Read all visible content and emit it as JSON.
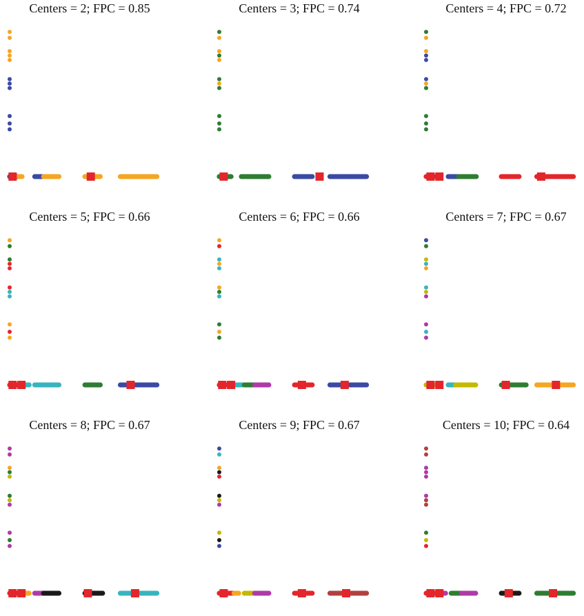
{
  "figure": {
    "panels": [
      {
        "title": "Centers = 2; FPC = 0.85"
      },
      {
        "title": "Centers = 3; FPC = 0.74"
      },
      {
        "title": "Centers = 4; FPC = 0.72"
      },
      {
        "title": "Centers = 5; FPC = 0.66"
      },
      {
        "title": "Centers = 6; FPC = 0.66"
      },
      {
        "title": "Centers = 7; FPC = 0.67"
      },
      {
        "title": "Centers = 8; FPC = 0.67"
      },
      {
        "title": "Centers = 9; FPC = 0.67"
      },
      {
        "title": "Centers = 10; FPC = 0.64"
      }
    ]
  },
  "chart_data": [
    {
      "type": "scatter",
      "title": "Centers = 2; FPC = 0.85",
      "xlim": [
        0,
        100
      ],
      "ylim": [
        0,
        100
      ],
      "vertical": [
        {
          "y": 98,
          "c": "#f5a623"
        },
        {
          "y": 94,
          "c": "#f5a623"
        },
        {
          "y": 85,
          "c": "#f5a623"
        },
        {
          "y": 82,
          "c": "#f5a623"
        },
        {
          "y": 79,
          "c": "#f5a623"
        },
        {
          "y": 66,
          "c": "#3b4aa3"
        },
        {
          "y": 63,
          "c": "#3b4aa3"
        },
        {
          "y": 60,
          "c": "#3b4aa3"
        },
        {
          "y": 41,
          "c": "#3b4aa3"
        },
        {
          "y": 36,
          "c": "#3b4aa3"
        },
        {
          "y": 32,
          "c": "#3b4aa3"
        }
      ],
      "horizontal": [
        {
          "x": [
            0,
            6
          ],
          "c": "#3b4aa3"
        },
        {
          "x": [
            6,
            9
          ],
          "c": "#f5a623"
        },
        {
          "x": [
            17,
            22
          ],
          "c": "#3b4aa3"
        },
        {
          "x": [
            23,
            34
          ],
          "c": "#f5a623"
        },
        {
          "x": [
            51,
            62
          ],
          "c": "#f5a623"
        },
        {
          "x": [
            75,
            100
          ],
          "c": "#f5a623"
        }
      ],
      "centers": [
        2,
        55
      ]
    },
    {
      "type": "scatter",
      "title": "Centers = 3; FPC = 0.74",
      "xlim": [
        0,
        100
      ],
      "ylim": [
        0,
        100
      ],
      "vertical": [
        {
          "y": 98,
          "c": "#2e7d32"
        },
        {
          "y": 94,
          "c": "#f5a623"
        },
        {
          "y": 85,
          "c": "#f5a623"
        },
        {
          "y": 82,
          "c": "#2e7d32"
        },
        {
          "y": 79,
          "c": "#f5a623"
        },
        {
          "y": 66,
          "c": "#2e7d32"
        },
        {
          "y": 63,
          "c": "#f5a623"
        },
        {
          "y": 60,
          "c": "#2e7d32"
        },
        {
          "y": 41,
          "c": "#2e7d32"
        },
        {
          "y": 36,
          "c": "#2e7d32"
        },
        {
          "y": 32,
          "c": "#2e7d32"
        }
      ],
      "horizontal": [
        {
          "x": [
            0,
            8
          ],
          "c": "#2e7d32"
        },
        {
          "x": [
            15,
            24
          ],
          "c": "#2e7d32"
        },
        {
          "x": [
            24,
            34
          ],
          "c": "#2e7d32"
        },
        {
          "x": [
            51,
            63
          ],
          "c": "#3b4aa3"
        },
        {
          "x": [
            75,
            100
          ],
          "c": "#3b4aa3"
        }
      ],
      "centers": [
        3,
        68
      ]
    },
    {
      "type": "scatter",
      "title": "Centers = 4; FPC = 0.72",
      "xlim": [
        0,
        100
      ],
      "ylim": [
        0,
        100
      ],
      "vertical": [
        {
          "y": 98,
          "c": "#2e7d32"
        },
        {
          "y": 94,
          "c": "#f5a623"
        },
        {
          "y": 85,
          "c": "#f5a623"
        },
        {
          "y": 82,
          "c": "#3b4aa3"
        },
        {
          "y": 79,
          "c": "#3b4aa3"
        },
        {
          "y": 66,
          "c": "#3b4aa3"
        },
        {
          "y": 63,
          "c": "#f5a623"
        },
        {
          "y": 60,
          "c": "#2e7d32"
        },
        {
          "y": 41,
          "c": "#2e7d32"
        },
        {
          "y": 36,
          "c": "#2e7d32"
        },
        {
          "y": 32,
          "c": "#2e7d32"
        }
      ],
      "horizontal": [
        {
          "x": [
            0,
            8
          ],
          "c": "#e3262b"
        },
        {
          "x": [
            15,
            22
          ],
          "c": "#3b4aa3"
        },
        {
          "x": [
            22,
            34
          ],
          "c": "#2e7d32"
        },
        {
          "x": [
            51,
            63
          ],
          "c": "#e3262b"
        },
        {
          "x": [
            75,
            100
          ],
          "c": "#e3262b"
        }
      ],
      "centers": [
        3,
        9,
        78
      ]
    },
    {
      "type": "scatter",
      "title": "Centers = 5; FPC = 0.66",
      "xlim": [
        0,
        100
      ],
      "ylim": [
        0,
        100
      ],
      "vertical": [
        {
          "y": 98,
          "c": "#f5a623"
        },
        {
          "y": 94,
          "c": "#2e7d32"
        },
        {
          "y": 85,
          "c": "#2e7d32"
        },
        {
          "y": 82,
          "c": "#e3262b"
        },
        {
          "y": 79,
          "c": "#e3262b"
        },
        {
          "y": 66,
          "c": "#e3262b"
        },
        {
          "y": 63,
          "c": "#37b5bf"
        },
        {
          "y": 60,
          "c": "#37b5bf"
        },
        {
          "y": 41,
          "c": "#f5a623"
        },
        {
          "y": 36,
          "c": "#e3262b"
        },
        {
          "y": 32,
          "c": "#f5a623"
        }
      ],
      "horizontal": [
        {
          "x": [
            0,
            10
          ],
          "c": "#e3262b"
        },
        {
          "x": [
            10,
            14
          ],
          "c": "#37b5bf"
        },
        {
          "x": [
            17,
            23
          ],
          "c": "#37b5bf"
        },
        {
          "x": [
            23,
            34
          ],
          "c": "#37b5bf"
        },
        {
          "x": [
            51,
            62
          ],
          "c": "#2e7d32"
        },
        {
          "x": [
            75,
            100
          ],
          "c": "#3b4aa3"
        }
      ],
      "centers": [
        2,
        8,
        82
      ]
    },
    {
      "type": "scatter",
      "title": "Centers = 6; FPC = 0.66",
      "xlim": [
        0,
        100
      ],
      "ylim": [
        0,
        100
      ],
      "vertical": [
        {
          "y": 98,
          "c": "#f5a623"
        },
        {
          "y": 94,
          "c": "#e3262b"
        },
        {
          "y": 85,
          "c": "#37b5bf"
        },
        {
          "y": 82,
          "c": "#f5a623"
        },
        {
          "y": 79,
          "c": "#37b5bf"
        },
        {
          "y": 66,
          "c": "#f5a623"
        },
        {
          "y": 63,
          "c": "#2e7d32"
        },
        {
          "y": 60,
          "c": "#37b5bf"
        },
        {
          "y": 41,
          "c": "#2e7d32"
        },
        {
          "y": 36,
          "c": "#f5a623"
        },
        {
          "y": 32,
          "c": "#2e7d32"
        }
      ],
      "horizontal": [
        {
          "x": [
            0,
            10
          ],
          "c": "#e3262b"
        },
        {
          "x": [
            10,
            16
          ],
          "c": "#37b5bf"
        },
        {
          "x": [
            17,
            24
          ],
          "c": "#2e7d32"
        },
        {
          "x": [
            24,
            34
          ],
          "c": "#b03aa8"
        },
        {
          "x": [
            51,
            63
          ],
          "c": "#e3262b"
        },
        {
          "x": [
            75,
            100
          ],
          "c": "#3b4aa3"
        }
      ],
      "centers": [
        2,
        8,
        56,
        85
      ]
    },
    {
      "type": "scatter",
      "title": "Centers = 7; FPC = 0.67",
      "xlim": [
        0,
        100
      ],
      "ylim": [
        0,
        100
      ],
      "vertical": [
        {
          "y": 98,
          "c": "#3b4aa3"
        },
        {
          "y": 94,
          "c": "#2e7d32"
        },
        {
          "y": 85,
          "c": "#c4b800"
        },
        {
          "y": 82,
          "c": "#37b5bf"
        },
        {
          "y": 79,
          "c": "#f5a623"
        },
        {
          "y": 66,
          "c": "#37b5bf"
        },
        {
          "y": 63,
          "c": "#c4b800"
        },
        {
          "y": 60,
          "c": "#b03aa8"
        },
        {
          "y": 41,
          "c": "#b03aa8"
        },
        {
          "y": 36,
          "c": "#37b5bf"
        },
        {
          "y": 32,
          "c": "#b03aa8"
        }
      ],
      "horizontal": [
        {
          "x": [
            0,
            10
          ],
          "c": "#c4b800"
        },
        {
          "x": [
            15,
            20
          ],
          "c": "#37b5bf"
        },
        {
          "x": [
            20,
            34
          ],
          "c": "#c4b800"
        },
        {
          "x": [
            51,
            68
          ],
          "c": "#2e7d32"
        },
        {
          "x": [
            75,
            100
          ],
          "c": "#f5a623"
        }
      ],
      "centers": [
        3,
        9,
        54,
        88
      ]
    },
    {
      "type": "scatter",
      "title": "Centers = 8; FPC = 0.67",
      "xlim": [
        0,
        100
      ],
      "ylim": [
        0,
        100
      ],
      "vertical": [
        {
          "y": 98,
          "c": "#b03aa8"
        },
        {
          "y": 94,
          "c": "#b03aa8"
        },
        {
          "y": 85,
          "c": "#f5a623"
        },
        {
          "y": 82,
          "c": "#2e7d32"
        },
        {
          "y": 79,
          "c": "#c4b800"
        },
        {
          "y": 66,
          "c": "#2e7d32"
        },
        {
          "y": 63,
          "c": "#c4b800"
        },
        {
          "y": 60,
          "c": "#b03aa8"
        },
        {
          "y": 41,
          "c": "#b03aa8"
        },
        {
          "y": 36,
          "c": "#2e7d32"
        },
        {
          "y": 32,
          "c": "#b03aa8"
        }
      ],
      "horizontal": [
        {
          "x": [
            0,
            10
          ],
          "c": "#e3262b"
        },
        {
          "x": [
            10,
            14
          ],
          "c": "#f5a623"
        },
        {
          "x": [
            17,
            23
          ],
          "c": "#b03aa8"
        },
        {
          "x": [
            23,
            34
          ],
          "c": "#1a1a1a"
        },
        {
          "x": [
            51,
            63
          ],
          "c": "#1a1a1a"
        },
        {
          "x": [
            75,
            100
          ],
          "c": "#37b5bf"
        }
      ],
      "centers": [
        2,
        8,
        53,
        85
      ]
    },
    {
      "type": "scatter",
      "title": "Centers = 9; FPC = 0.67",
      "xlim": [
        0,
        100
      ],
      "ylim": [
        0,
        100
      ],
      "vertical": [
        {
          "y": 98,
          "c": "#3b4aa3"
        },
        {
          "y": 94,
          "c": "#37b5bf"
        },
        {
          "y": 85,
          "c": "#f5a623"
        },
        {
          "y": 82,
          "c": "#1a1a1a"
        },
        {
          "y": 79,
          "c": "#e3262b"
        },
        {
          "y": 66,
          "c": "#1a1a1a"
        },
        {
          "y": 63,
          "c": "#c4b800"
        },
        {
          "y": 60,
          "c": "#b03aa8"
        },
        {
          "y": 41,
          "c": "#c4b800"
        },
        {
          "y": 36,
          "c": "#1a1a1a"
        },
        {
          "y": 32,
          "c": "#3b4aa3"
        }
      ],
      "horizontal": [
        {
          "x": [
            0,
            10
          ],
          "c": "#e3262b"
        },
        {
          "x": [
            10,
            14
          ],
          "c": "#f5a623"
        },
        {
          "x": [
            17,
            24
          ],
          "c": "#c4b800"
        },
        {
          "x": [
            24,
            34
          ],
          "c": "#b03aa8"
        },
        {
          "x": [
            51,
            63
          ],
          "c": "#e3262b"
        },
        {
          "x": [
            75,
            100
          ],
          "c": "#b2413f"
        }
      ],
      "centers": [
        3,
        56,
        86
      ]
    },
    {
      "type": "scatter",
      "title": "Centers = 10; FPC = 0.64",
      "xlim": [
        0,
        100
      ],
      "ylim": [
        0,
        100
      ],
      "vertical": [
        {
          "y": 98,
          "c": "#b2413f"
        },
        {
          "y": 94,
          "c": "#b2413f"
        },
        {
          "y": 85,
          "c": "#b03aa8"
        },
        {
          "y": 82,
          "c": "#b03aa8"
        },
        {
          "y": 79,
          "c": "#b03aa8"
        },
        {
          "y": 66,
          "c": "#b03aa8"
        },
        {
          "y": 63,
          "c": "#b2413f"
        },
        {
          "y": 60,
          "c": "#b2413f"
        },
        {
          "y": 41,
          "c": "#2e7d32"
        },
        {
          "y": 36,
          "c": "#c4b800"
        },
        {
          "y": 32,
          "c": "#e3262b"
        }
      ],
      "horizontal": [
        {
          "x": [
            0,
            10
          ],
          "c": "#e3262b"
        },
        {
          "x": [
            10,
            14
          ],
          "c": "#b03aa8"
        },
        {
          "x": [
            17,
            24
          ],
          "c": "#2e7d32"
        },
        {
          "x": [
            24,
            34
          ],
          "c": "#b03aa8"
        },
        {
          "x": [
            51,
            63
          ],
          "c": "#1a1a1a"
        },
        {
          "x": [
            75,
            100
          ],
          "c": "#2e7d32"
        }
      ],
      "centers": [
        3,
        9,
        56,
        86
      ]
    }
  ]
}
